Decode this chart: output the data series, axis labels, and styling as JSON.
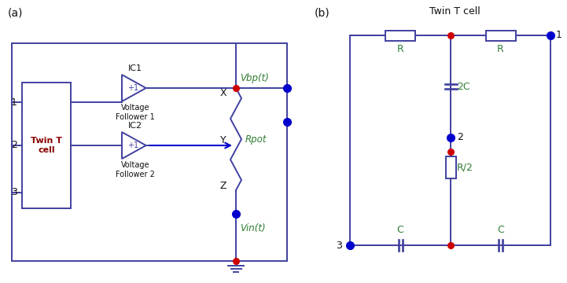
{
  "bg_color": "#ffffff",
  "line_color": "#4040a0",
  "red_dot_color": "#cc0000",
  "blue_dot_color": "#0000cc",
  "green_text_color": "#2e7d32",
  "dark_text_color": "#111111",
  "darkred_text_color": "#8b0000",
  "label_a": "(a)",
  "label_b": "(b)",
  "title_b": "Twin T cell",
  "twin_t_label": "Twin T\ncell",
  "ic1_label": "IC1",
  "ic2_label": "IC2",
  "vf1_label": "Voltage\nFollower 1",
  "vf2_label": "Voltage\nFollower 2",
  "vbp_label": "Vbp(t)",
  "vin_label": "Vin(t)",
  "rpot_label": "Rpot",
  "x_label": "X",
  "y_label": "Y",
  "z_label": "Z",
  "r1_label": "R",
  "r2_label": "R",
  "r_half_label": "R/2",
  "c2_label": "2C",
  "c1_label": "C",
  "c3_label": "C",
  "plus1": "+1"
}
